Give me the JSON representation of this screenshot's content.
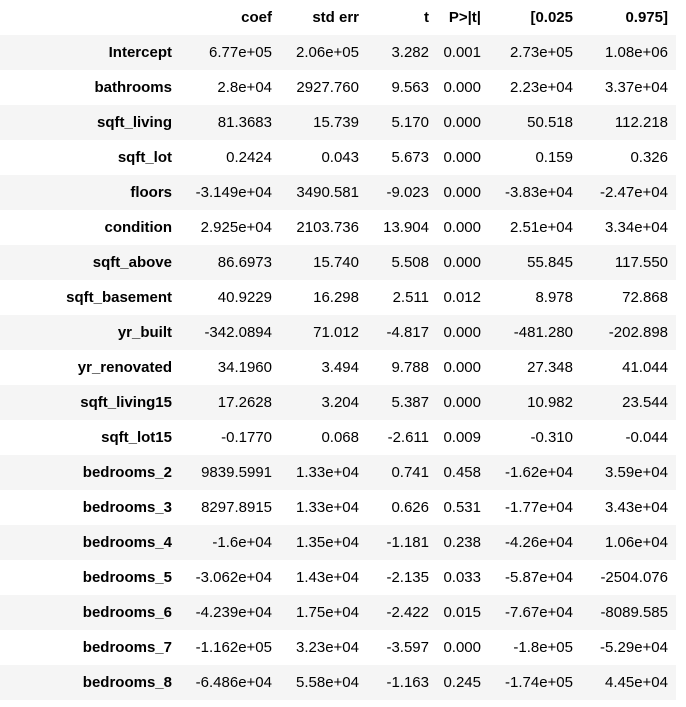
{
  "table": {
    "columns": [
      "",
      "coef",
      "std err",
      "t",
      "P>|t|",
      "[0.025",
      "0.975]"
    ],
    "rows": [
      [
        "Intercept",
        "6.77e+05",
        "2.06e+05",
        "3.282",
        "0.001",
        "2.73e+05",
        "1.08e+06"
      ],
      [
        "bathrooms",
        "2.8e+04",
        "2927.760",
        "9.563",
        "0.000",
        "2.23e+04",
        "3.37e+04"
      ],
      [
        "sqft_living",
        "81.3683",
        "15.739",
        "5.170",
        "0.000",
        "50.518",
        "112.218"
      ],
      [
        "sqft_lot",
        "0.2424",
        "0.043",
        "5.673",
        "0.000",
        "0.159",
        "0.326"
      ],
      [
        "floors",
        "-3.149e+04",
        "3490.581",
        "-9.023",
        "0.000",
        "-3.83e+04",
        "-2.47e+04"
      ],
      [
        "condition",
        "2.925e+04",
        "2103.736",
        "13.904",
        "0.000",
        "2.51e+04",
        "3.34e+04"
      ],
      [
        "sqft_above",
        "86.6973",
        "15.740",
        "5.508",
        "0.000",
        "55.845",
        "117.550"
      ],
      [
        "sqft_basement",
        "40.9229",
        "16.298",
        "2.511",
        "0.012",
        "8.978",
        "72.868"
      ],
      [
        "yr_built",
        "-342.0894",
        "71.012",
        "-4.817",
        "0.000",
        "-481.280",
        "-202.898"
      ],
      [
        "yr_renovated",
        "34.1960",
        "3.494",
        "9.788",
        "0.000",
        "27.348",
        "41.044"
      ],
      [
        "sqft_living15",
        "17.2628",
        "3.204",
        "5.387",
        "0.000",
        "10.982",
        "23.544"
      ],
      [
        "sqft_lot15",
        "-0.1770",
        "0.068",
        "-2.611",
        "0.009",
        "-0.310",
        "-0.044"
      ],
      [
        "bedrooms_2",
        "9839.5991",
        "1.33e+04",
        "0.741",
        "0.458",
        "-1.62e+04",
        "3.59e+04"
      ],
      [
        "bedrooms_3",
        "8297.8915",
        "1.33e+04",
        "0.626",
        "0.531",
        "-1.77e+04",
        "3.43e+04"
      ],
      [
        "bedrooms_4",
        "-1.6e+04",
        "1.35e+04",
        "-1.181",
        "0.238",
        "-4.26e+04",
        "1.06e+04"
      ],
      [
        "bedrooms_5",
        "-3.062e+04",
        "1.43e+04",
        "-2.135",
        "0.033",
        "-5.87e+04",
        "-2504.076"
      ],
      [
        "bedrooms_6",
        "-4.239e+04",
        "1.75e+04",
        "-2.422",
        "0.015",
        "-7.67e+04",
        "-8089.585"
      ],
      [
        "bedrooms_7",
        "-1.162e+05",
        "3.23e+04",
        "-3.597",
        "0.000",
        "-1.8e+05",
        "-5.29e+04"
      ],
      [
        "bedrooms_8",
        "-6.486e+04",
        "5.58e+04",
        "-1.163",
        "0.245",
        "-1.74e+05",
        "4.45e+04"
      ]
    ]
  }
}
